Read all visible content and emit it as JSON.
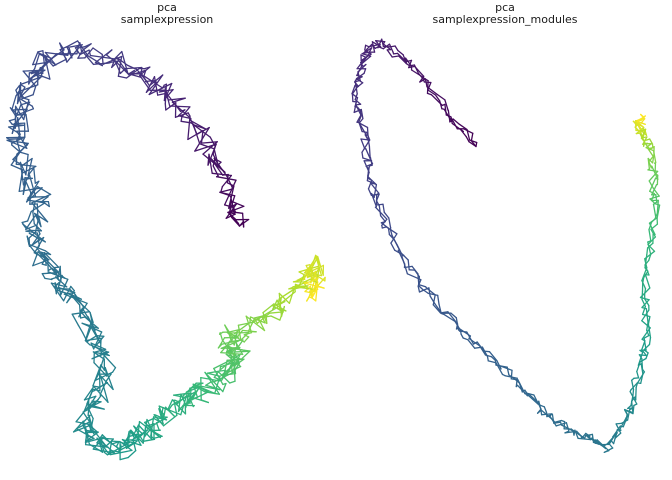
{
  "chart_data": [
    {
      "type": "line",
      "panel_title_line1": "pca",
      "panel_title_line2": "samplexpression",
      "axes_visible": false,
      "grid": false,
      "legend": "none",
      "color_map": "viridis, coloured by ordering along trajectory",
      "series": [
        {
          "x": [
            0.74,
            0.72,
            0.66,
            0.58,
            0.5,
            0.4,
            0.3,
            0.18,
            0.1,
            0.05,
            0.02,
            0.0,
            0.03,
            0.08,
            0.05,
            0.09,
            0.14,
            0.2,
            0.26,
            0.3,
            0.26,
            0.22,
            0.28,
            0.34,
            0.4,
            0.46,
            0.52,
            0.58,
            0.64,
            0.7,
            0.74,
            0.7,
            0.78,
            0.86,
            0.94,
            0.98,
            1.0,
            0.98
          ],
          "y": [
            0.56,
            0.62,
            0.72,
            0.82,
            0.9,
            0.94,
            0.98,
            1.0,
            0.97,
            0.92,
            0.85,
            0.78,
            0.7,
            0.62,
            0.55,
            0.48,
            0.42,
            0.36,
            0.28,
            0.2,
            0.12,
            0.06,
            0.02,
            0.0,
            0.03,
            0.06,
            0.1,
            0.13,
            0.16,
            0.2,
            0.24,
            0.28,
            0.31,
            0.35,
            0.4,
            0.46,
            0.42,
            0.38
          ],
          "color_order": [
            0.0,
            0.02,
            0.05,
            0.08,
            0.11,
            0.14,
            0.17,
            0.2,
            0.22,
            0.24,
            0.26,
            0.28,
            0.3,
            0.32,
            0.34,
            0.36,
            0.38,
            0.4,
            0.42,
            0.44,
            0.46,
            0.48,
            0.5,
            0.53,
            0.56,
            0.59,
            0.62,
            0.65,
            0.68,
            0.71,
            0.74,
            0.77,
            0.8,
            0.84,
            0.88,
            0.92,
            0.96,
            1.0
          ]
        }
      ]
    },
    {
      "type": "line",
      "panel_title_line1": "pca",
      "panel_title_line2": "samplexpression_modules",
      "axes_visible": false,
      "grid": false,
      "legend": "none",
      "color_map": "viridis, coloured by ordering along trajectory",
      "series": [
        {
          "x": [
            0.4,
            0.32,
            0.24,
            0.16,
            0.08,
            0.04,
            0.02,
            0.0,
            0.02,
            0.04,
            0.06,
            0.1,
            0.16,
            0.24,
            0.34,
            0.44,
            0.54,
            0.62,
            0.7,
            0.78,
            0.84,
            0.88,
            0.92,
            0.95,
            0.97,
            0.96,
            0.98,
            1.0,
            0.99,
            0.98,
            0.96,
            0.94,
            0.96
          ],
          "y": [
            0.75,
            0.82,
            0.9,
            0.96,
            1.0,
            0.98,
            0.94,
            0.88,
            0.8,
            0.72,
            0.64,
            0.56,
            0.48,
            0.4,
            0.32,
            0.25,
            0.18,
            0.12,
            0.08,
            0.05,
            0.03,
            0.08,
            0.14,
            0.22,
            0.3,
            0.4,
            0.5,
            0.6,
            0.68,
            0.74,
            0.78,
            0.8,
            0.82
          ],
          "color_order": [
            0.0,
            0.02,
            0.04,
            0.06,
            0.08,
            0.1,
            0.12,
            0.14,
            0.16,
            0.18,
            0.2,
            0.22,
            0.24,
            0.26,
            0.28,
            0.3,
            0.32,
            0.34,
            0.36,
            0.38,
            0.4,
            0.44,
            0.48,
            0.52,
            0.56,
            0.6,
            0.64,
            0.7,
            0.76,
            0.82,
            0.88,
            0.94,
            1.0
          ]
        }
      ]
    }
  ]
}
